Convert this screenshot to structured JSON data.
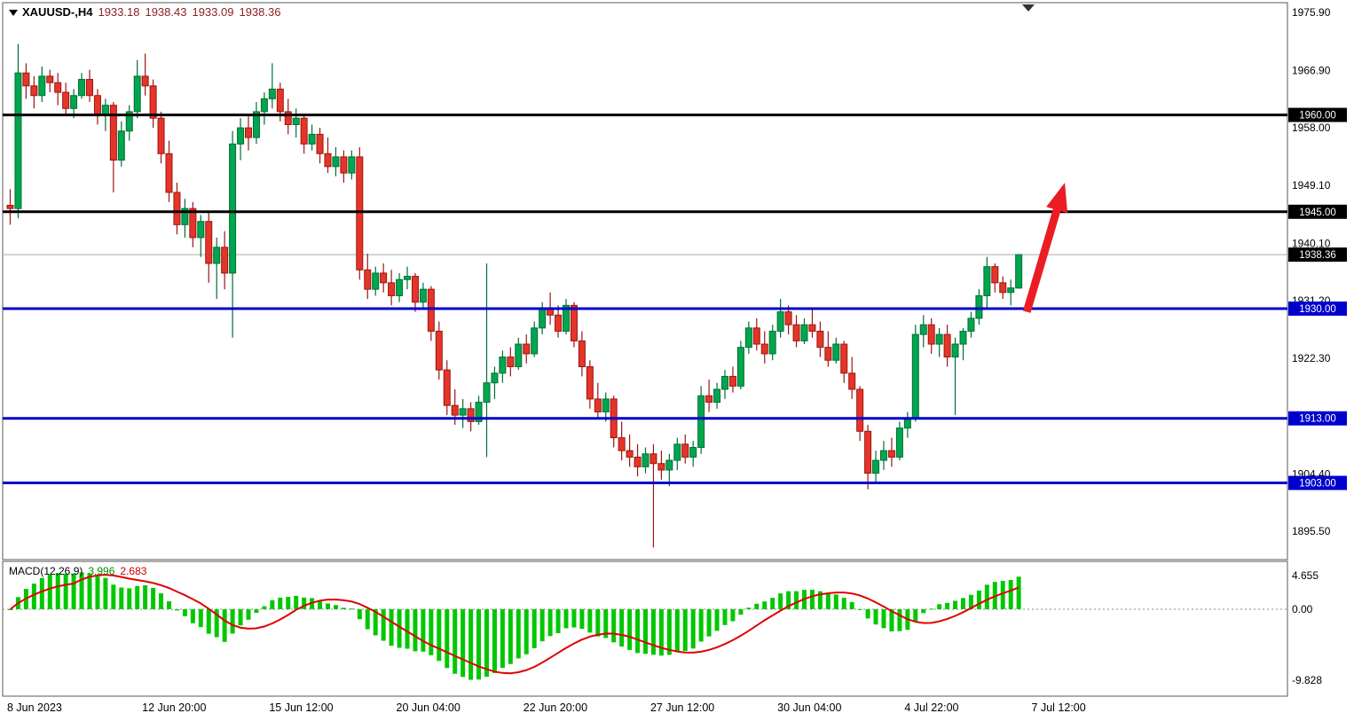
{
  "header": {
    "symbol_period": "XAUUSD-,H4",
    "open": "1933.18",
    "high": "1938.43",
    "low": "1933.09",
    "close": "1938.36"
  },
  "palette": {
    "up_fill": "#00a64f",
    "up_edge": "#006f34",
    "down_fill": "#e53528",
    "down_edge": "#9c1510",
    "level_black": "#000000",
    "level_blue": "#0000cd",
    "badge_text": "#ffffff",
    "current_line": "#aaaaaa",
    "current_badge": "#000000",
    "macd_hist": "#00c800",
    "macd_signal": "#e00000",
    "arrow": "#ec1c24",
    "panel_border": "#5a5a5a",
    "axis_text": "#000000"
  },
  "y_axis": {
    "ticks": [
      "1975.90",
      "1966.90",
      "1958.00",
      "1949.10",
      "1940.10",
      "1931.20",
      "1922.30",
      "1913.30",
      "1904.40",
      "1895.50"
    ]
  },
  "x_axis": {
    "labels": [
      {
        "text": "8 Jun 2023",
        "index": 0
      },
      {
        "text": "12 Jun 20:00",
        "index": 17
      },
      {
        "text": "15 Jun 12:00",
        "index": 33
      },
      {
        "text": "20 Jun 04:00",
        "index": 49
      },
      {
        "text": "22 Jun 20:00",
        "index": 65
      },
      {
        "text": "27 Jun 12:00",
        "index": 81
      },
      {
        "text": "30 Jun 04:00",
        "index": 97
      },
      {
        "text": "4 Jul 22:00",
        "index": 113
      },
      {
        "text": "7 Jul 12:00",
        "index": 129
      }
    ]
  },
  "levels": [
    {
      "label": "1960.00",
      "value": 1960.0,
      "color": "#000000",
      "width": 3
    },
    {
      "label": "1945.00",
      "value": 1945.0,
      "color": "#000000",
      "width": 3
    },
    {
      "label": "1930.00",
      "value": 1930.0,
      "color": "#0000cd",
      "width": 3
    },
    {
      "label": "1913.00",
      "value": 1913.0,
      "color": "#0000cd",
      "width": 3
    },
    {
      "label": "1903.00",
      "value": 1903.0,
      "color": "#0000cd",
      "width": 3
    }
  ],
  "current_price": {
    "label": "1938.36",
    "value": 1938.36
  },
  "annotations": {
    "arrow": {
      "tail": {
        "index": 128.4,
        "price": 1929.5
      },
      "head": {
        "index": 133.2,
        "price": 1949.5
      },
      "color": "#ec1c24"
    }
  },
  "chart_data": {
    "type": "candlestick",
    "symbol": "XAUUSD",
    "timeframe": "H4",
    "title": "XAUUSD-,H4 1933.18 1938.43 1933.09 1938.36",
    "ylim": [
      1891.5,
      1977.8
    ],
    "grid": false,
    "candles": [
      [
        1946.0,
        1948.5,
        1943.0,
        1945.5
      ],
      [
        1945.5,
        1971.0,
        1944.0,
        1966.5
      ],
      [
        1966.5,
        1968.0,
        1962.5,
        1964.5
      ],
      [
        1964.5,
        1966.0,
        1961.0,
        1963.0
      ],
      [
        1963.0,
        1967.5,
        1962.0,
        1966.0
      ],
      [
        1966.0,
        1967.0,
        1963.5,
        1965.0
      ],
      [
        1965.0,
        1966.5,
        1961.5,
        1963.5
      ],
      [
        1963.5,
        1965.0,
        1960.0,
        1961.0
      ],
      [
        1961.0,
        1964.0,
        1959.5,
        1963.0
      ],
      [
        1963.0,
        1966.5,
        1962.5,
        1965.5
      ],
      [
        1965.5,
        1967.0,
        1962.0,
        1963.0
      ],
      [
        1963.0,
        1964.0,
        1958.5,
        1960.0
      ],
      [
        1960.0,
        1962.5,
        1957.5,
        1961.5
      ],
      [
        1961.5,
        1962.0,
        1948.0,
        1953.0
      ],
      [
        1953.0,
        1959.0,
        1952.0,
        1957.5
      ],
      [
        1957.5,
        1961.5,
        1956.0,
        1960.5
      ],
      [
        1960.5,
        1968.5,
        1959.5,
        1966.0
      ],
      [
        1966.0,
        1969.5,
        1963.0,
        1964.5
      ],
      [
        1964.5,
        1965.5,
        1958.0,
        1959.5
      ],
      [
        1959.5,
        1960.5,
        1952.5,
        1954.0
      ],
      [
        1954.0,
        1956.0,
        1946.5,
        1948.0
      ],
      [
        1948.0,
        1949.5,
        1941.5,
        1943.0
      ],
      [
        1943.0,
        1947.0,
        1941.0,
        1945.5
      ],
      [
        1945.5,
        1946.5,
        1939.5,
        1941.0
      ],
      [
        1941.0,
        1944.5,
        1938.0,
        1943.5
      ],
      [
        1943.5,
        1945.0,
        1934.0,
        1937.0
      ],
      [
        1937.0,
        1941.0,
        1931.5,
        1939.5
      ],
      [
        1939.5,
        1942.0,
        1933.0,
        1935.5
      ],
      [
        1935.5,
        1957.5,
        1925.5,
        1955.5
      ],
      [
        1955.5,
        1959.5,
        1953.0,
        1958.0
      ],
      [
        1958.0,
        1960.0,
        1954.5,
        1956.5
      ],
      [
        1956.5,
        1962.0,
        1955.5,
        1960.5
      ],
      [
        1960.5,
        1963.5,
        1958.5,
        1962.5
      ],
      [
        1962.5,
        1968.0,
        1961.0,
        1964.0
      ],
      [
        1964.0,
        1965.0,
        1959.0,
        1960.5
      ],
      [
        1960.5,
        1962.5,
        1957.0,
        1958.5
      ],
      [
        1958.5,
        1961.0,
        1956.5,
        1959.5
      ],
      [
        1959.5,
        1960.0,
        1954.0,
        1955.5
      ],
      [
        1955.5,
        1958.5,
        1954.5,
        1957.0
      ],
      [
        1957.0,
        1958.0,
        1952.5,
        1954.0
      ],
      [
        1954.0,
        1956.5,
        1951.0,
        1952.0
      ],
      [
        1952.0,
        1955.0,
        1950.5,
        1953.5
      ],
      [
        1953.5,
        1954.5,
        1949.5,
        1951.0
      ],
      [
        1951.0,
        1954.5,
        1950.0,
        1953.5
      ],
      [
        1953.5,
        1955.0,
        1934.5,
        1936.0
      ],
      [
        1936.0,
        1938.5,
        1931.5,
        1933.0
      ],
      [
        1933.0,
        1936.5,
        1932.0,
        1935.5
      ],
      [
        1935.5,
        1937.0,
        1932.5,
        1934.0
      ],
      [
        1934.0,
        1936.0,
        1930.5,
        1932.0
      ],
      [
        1932.0,
        1935.5,
        1931.0,
        1934.5
      ],
      [
        1934.5,
        1936.5,
        1933.0,
        1935.0
      ],
      [
        1935.0,
        1935.5,
        1929.5,
        1931.0
      ],
      [
        1931.0,
        1934.0,
        1930.0,
        1933.0
      ],
      [
        1933.0,
        1933.5,
        1925.0,
        1926.5
      ],
      [
        1926.5,
        1928.0,
        1919.0,
        1920.5
      ],
      [
        1920.5,
        1922.0,
        1913.5,
        1915.0
      ],
      [
        1915.0,
        1917.5,
        1912.0,
        1913.5
      ],
      [
        1913.5,
        1916.0,
        1911.5,
        1914.5
      ],
      [
        1914.5,
        1915.5,
        1911.0,
        1912.5
      ],
      [
        1912.5,
        1916.5,
        1912.0,
        1915.5
      ],
      [
        1915.5,
        1937.0,
        1907.0,
        1918.5
      ],
      [
        1918.5,
        1921.0,
        1916.0,
        1920.0
      ],
      [
        1920.0,
        1923.5,
        1918.5,
        1922.5
      ],
      [
        1922.5,
        1924.0,
        1919.5,
        1921.0
      ],
      [
        1921.0,
        1925.5,
        1920.5,
        1924.5
      ],
      [
        1924.5,
        1926.0,
        1921.5,
        1923.0
      ],
      [
        1923.0,
        1928.0,
        1922.5,
        1927.0
      ],
      [
        1927.0,
        1931.0,
        1926.0,
        1930.0
      ],
      [
        1930.0,
        1932.5,
        1927.5,
        1929.0
      ],
      [
        1929.0,
        1930.5,
        1925.5,
        1926.5
      ],
      [
        1926.5,
        1931.5,
        1926.0,
        1930.5
      ],
      [
        1930.5,
        1931.0,
        1924.0,
        1925.0
      ],
      [
        1925.0,
        1926.5,
        1919.5,
        1921.0
      ],
      [
        1921.0,
        1922.0,
        1914.5,
        1916.0
      ],
      [
        1916.0,
        1918.5,
        1913.0,
        1914.0
      ],
      [
        1914.0,
        1917.0,
        1912.5,
        1916.0
      ],
      [
        1916.0,
        1916.5,
        1908.5,
        1910.0
      ],
      [
        1910.0,
        1912.5,
        1906.5,
        1908.0
      ],
      [
        1908.0,
        1910.5,
        1905.5,
        1907.0
      ],
      [
        1907.0,
        1909.0,
        1904.0,
        1905.5
      ],
      [
        1905.5,
        1908.5,
        1904.5,
        1907.5
      ],
      [
        1907.5,
        1909.0,
        1893.0,
        1906.0
      ],
      [
        1906.0,
        1908.0,
        1903.5,
        1905.0
      ],
      [
        1905.0,
        1907.5,
        1902.5,
        1906.5
      ],
      [
        1906.5,
        1910.0,
        1905.0,
        1909.0
      ],
      [
        1909.0,
        1910.5,
        1906.0,
        1907.0
      ],
      [
        1907.0,
        1909.5,
        1905.5,
        1908.5
      ],
      [
        1908.5,
        1918.0,
        1907.5,
        1916.5
      ],
      [
        1916.5,
        1919.0,
        1914.0,
        1915.5
      ],
      [
        1915.5,
        1918.5,
        1914.5,
        1917.5
      ],
      [
        1917.5,
        1920.5,
        1916.0,
        1919.5
      ],
      [
        1919.5,
        1921.0,
        1917.0,
        1918.0
      ],
      [
        1918.0,
        1925.0,
        1917.5,
        1924.0
      ],
      [
        1924.0,
        1928.0,
        1923.0,
        1927.0
      ],
      [
        1927.0,
        1928.5,
        1923.5,
        1924.5
      ],
      [
        1924.5,
        1926.5,
        1921.5,
        1923.0
      ],
      [
        1923.0,
        1927.5,
        1922.0,
        1926.5
      ],
      [
        1926.5,
        1931.5,
        1925.5,
        1929.5
      ],
      [
        1929.5,
        1930.5,
        1926.0,
        1927.5
      ],
      [
        1927.5,
        1929.0,
        1924.0,
        1925.0
      ],
      [
        1925.0,
        1928.5,
        1924.5,
        1927.5
      ],
      [
        1927.5,
        1930.0,
        1925.5,
        1926.5
      ],
      [
        1926.5,
        1928.0,
        1922.5,
        1924.0
      ],
      [
        1924.0,
        1926.5,
        1921.0,
        1922.0
      ],
      [
        1922.0,
        1925.5,
        1921.5,
        1924.5
      ],
      [
        1924.5,
        1925.0,
        1918.5,
        1920.0
      ],
      [
        1920.0,
        1922.5,
        1916.0,
        1917.5
      ],
      [
        1917.5,
        1918.0,
        1909.5,
        1911.0
      ],
      [
        1911.0,
        1912.0,
        1902.0,
        1904.5
      ],
      [
        1904.5,
        1908.0,
        1903.0,
        1906.5
      ],
      [
        1906.5,
        1909.5,
        1905.0,
        1908.0
      ],
      [
        1908.0,
        1910.0,
        1905.5,
        1907.0
      ],
      [
        1907.0,
        1912.5,
        1906.5,
        1911.5
      ],
      [
        1911.5,
        1914.0,
        1910.0,
        1913.0
      ],
      [
        1913.0,
        1927.5,
        1912.5,
        1926.0
      ],
      [
        1926.0,
        1929.0,
        1924.0,
        1927.5
      ],
      [
        1927.5,
        1928.5,
        1923.0,
        1924.5
      ],
      [
        1924.5,
        1927.0,
        1922.5,
        1926.0
      ],
      [
        1926.0,
        1927.5,
        1921.0,
        1922.5
      ],
      [
        1922.5,
        1925.5,
        1913.5,
        1924.5
      ],
      [
        1924.5,
        1927.0,
        1922.0,
        1926.5
      ],
      [
        1926.5,
        1929.5,
        1925.5,
        1928.5
      ],
      [
        1928.5,
        1933.0,
        1927.5,
        1932.0
      ],
      [
        1932.0,
        1938.0,
        1930.0,
        1936.5
      ],
      [
        1936.5,
        1937.0,
        1932.5,
        1934.0
      ],
      [
        1934.0,
        1935.0,
        1931.5,
        1932.5
      ],
      [
        1932.5,
        1934.5,
        1930.5,
        1933.2
      ],
      [
        1933.18,
        1938.43,
        1933.09,
        1938.36
      ]
    ],
    "macd": {
      "label": "MACD(12,26,9)",
      "fast": 12,
      "slow": 26,
      "signal": 9,
      "value_main": "3.996",
      "value_signal": "2.683",
      "axis_ticks": [
        "4.655",
        "0.00",
        "-9.828"
      ]
    }
  }
}
